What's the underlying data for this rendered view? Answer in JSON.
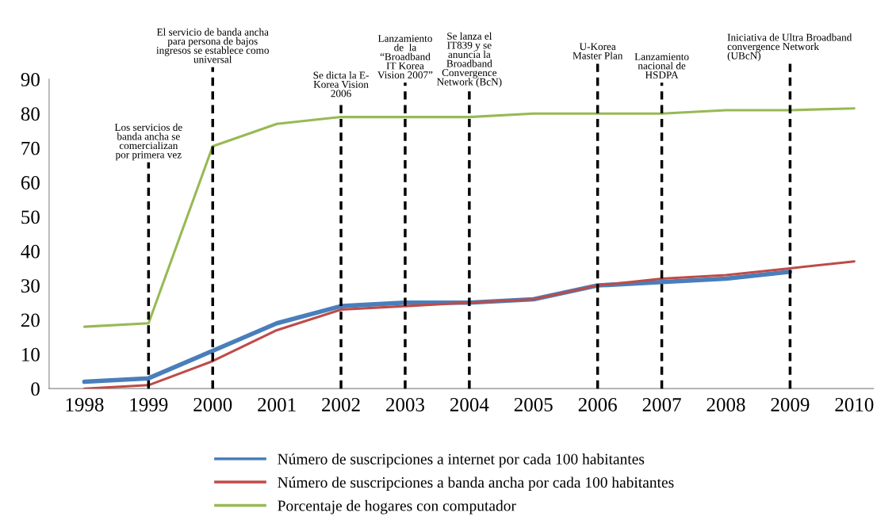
{
  "chart_data": {
    "type": "line",
    "categories": [
      "1998",
      "1999",
      "2000",
      "2001",
      "2002",
      "2003",
      "2004",
      "2005",
      "2006",
      "2007",
      "2008",
      "2009",
      "2010"
    ],
    "series": [
      {
        "name": "Número de suscripciones a internet por cada 100 habitantes",
        "color": "#4a7ebb",
        "values": [
          2,
          3,
          11,
          19,
          24,
          25,
          25,
          26,
          30,
          31,
          32,
          34,
          null
        ]
      },
      {
        "name": "Número de suscripciones a banda ancha por cada 100 habitantes",
        "color": "#be4b48",
        "values": [
          0,
          1,
          8,
          17,
          23,
          24,
          25,
          26,
          30,
          32,
          33,
          35,
          37
        ]
      },
      {
        "name": "Porcentaje de hogares con computador",
        "color": "#98b954",
        "values": [
          18,
          19,
          70.5,
          77,
          79,
          79,
          79,
          80,
          80,
          80,
          81,
          81,
          81.5
        ]
      }
    ],
    "ylim": [
      0,
      90
    ],
    "yticks": [
      0,
      10,
      20,
      30,
      40,
      50,
      60,
      70,
      80,
      90
    ],
    "grid": false,
    "legend": "bottom",
    "marker": "none",
    "line_style": "solid",
    "ref_lines": [
      {
        "axis": "x",
        "value": "1999",
        "label": "Los servicios de\nbanda ancha se\ncomercializan\npor primera vez",
        "color": "#000000",
        "line_style": "dashed"
      },
      {
        "axis": "x",
        "value": "2000",
        "label": "El servicio de banda ancha\npara persona de bajos\ningresos se establece como\nuniversal",
        "color": "#000000",
        "line_style": "dashed"
      },
      {
        "axis": "x",
        "value": "2002",
        "label": "Se dicta la E-\nKorea Vision\n2006",
        "color": "#000000",
        "line_style": "dashed"
      },
      {
        "axis": "x",
        "value": "2003",
        "label": "Lanzamiento\nde  la\n“Broadband\nIT Korea\nVision 2007”",
        "color": "#000000",
        "line_style": "dashed"
      },
      {
        "axis": "x",
        "value": "2004",
        "label": "Se lanza el\nIT839 y se\nanuncia la\nBroadband\nConvergence\nNetwork (BcN)",
        "color": "#000000",
        "line_style": "dashed"
      },
      {
        "axis": "x",
        "value": "2006",
        "label": "U-Korea\nMaster Plan",
        "color": "#000000",
        "line_style": "dashed"
      },
      {
        "axis": "x",
        "value": "2007",
        "label": "Lanzamiento\nnacional de\nHSDPA",
        "color": "#000000",
        "line_style": "dashed"
      },
      {
        "axis": "x",
        "value": "2009",
        "label": "Iniciativa de Ultra Broadband\nconvergence Network\n(UBcN)",
        "color": "#000000",
        "line_style": "dashed"
      }
    ]
  }
}
